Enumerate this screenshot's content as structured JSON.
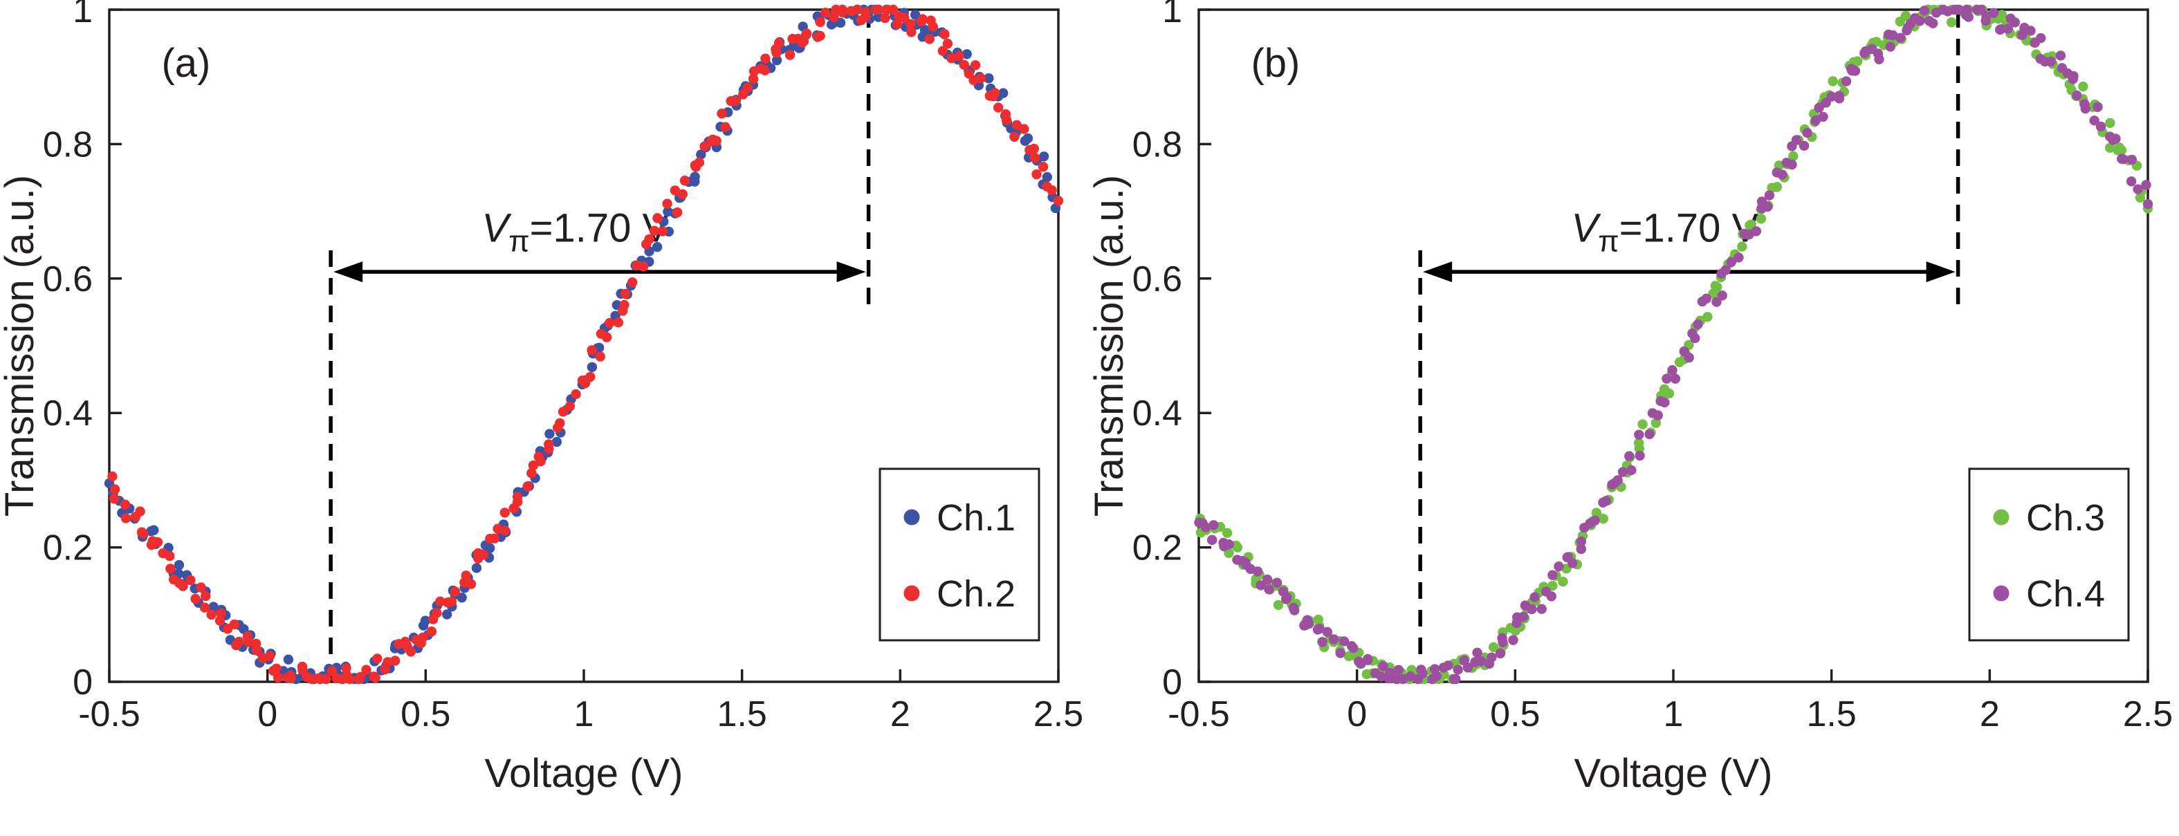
{
  "figure_background": "#ffffff",
  "axis_color": "#231f20",
  "chart_data": [
    {
      "type": "scatter",
      "panel_label": "(a)",
      "title": "",
      "xlabel": "Voltage (V)",
      "ylabel": "Transmission (a.u.)",
      "xlim": [
        -0.5,
        2.5
      ],
      "ylim": [
        0,
        1
      ],
      "x_ticks": [
        -0.5,
        0,
        0.5,
        1,
        1.5,
        2,
        2.5
      ],
      "x_tick_labels": [
        "-0.5",
        "0",
        "0.5",
        "1",
        "1.5",
        "2",
        "2.5"
      ],
      "y_ticks": [
        0,
        0.2,
        0.4,
        0.6,
        0.8,
        1
      ],
      "y_tick_labels": [
        "0",
        "0.2",
        "0.4",
        "0.6",
        "0.8",
        "1"
      ],
      "grid": false,
      "legend_position": "lower right",
      "annotation": {
        "v_label": "V",
        "pi_sub": "π",
        "value_text": "=1.70 V",
        "v_pi_volts": 1.7,
        "min_voltage": 0.2,
        "max_voltage": 1.9,
        "arrow_y": 0.61
      },
      "x": [
        -0.5,
        -0.4,
        -0.3,
        -0.2,
        -0.1,
        0,
        0.1,
        0.2,
        0.3,
        0.4,
        0.5,
        0.6,
        0.7,
        0.8,
        0.9,
        1,
        1.1,
        1.2,
        1.3,
        1.4,
        1.5,
        1.6,
        1.7,
        1.8,
        1.9,
        2,
        2.1,
        2.2,
        2.3,
        2.4,
        2.5
      ],
      "series": [
        {
          "name": "Ch.1",
          "color": "#3a53a4",
          "values": [
            0.29,
            0.235,
            0.175,
            0.12,
            0.07,
            0.032,
            0.008,
            0.003,
            0.01,
            0.035,
            0.075,
            0.13,
            0.2,
            0.28,
            0.36,
            0.45,
            0.55,
            0.64,
            0.72,
            0.8,
            0.87,
            0.925,
            0.965,
            0.99,
            1,
            0.99,
            0.965,
            0.925,
            0.87,
            0.8,
            0.72
          ]
        },
        {
          "name": "Ch.2",
          "color": "#ee2e2e",
          "values": [
            0.29,
            0.235,
            0.175,
            0.12,
            0.07,
            0.032,
            0.008,
            0.003,
            0.01,
            0.035,
            0.075,
            0.13,
            0.2,
            0.28,
            0.36,
            0.45,
            0.55,
            0.64,
            0.72,
            0.8,
            0.87,
            0.925,
            0.965,
            0.99,
            1,
            0.99,
            0.965,
            0.925,
            0.87,
            0.8,
            0.72
          ]
        }
      ]
    },
    {
      "type": "scatter",
      "panel_label": "(b)",
      "title": "",
      "xlabel": "Voltage (V)",
      "ylabel": "Transmission (a.u.)",
      "xlim": [
        -0.5,
        2.5
      ],
      "ylim": [
        0,
        1
      ],
      "x_ticks": [
        -0.5,
        0,
        0.5,
        1,
        1.5,
        2,
        2.5
      ],
      "x_tick_labels": [
        "-0.5",
        "0",
        "0.5",
        "1",
        "1.5",
        "2",
        "2.5"
      ],
      "y_ticks": [
        0,
        0.2,
        0.4,
        0.6,
        0.8,
        1
      ],
      "y_tick_labels": [
        "0",
        "0.2",
        "0.4",
        "0.6",
        "0.8",
        "1"
      ],
      "grid": false,
      "legend_position": "lower right",
      "annotation": {
        "v_label": "V",
        "pi_sub": "π",
        "value_text": "=1.70 V",
        "v_pi_volts": 1.7,
        "min_voltage": 0.2,
        "max_voltage": 1.9,
        "arrow_y": 0.61
      },
      "x": [
        -0.5,
        -0.4,
        -0.3,
        -0.2,
        -0.1,
        0,
        0.1,
        0.2,
        0.3,
        0.4,
        0.5,
        0.6,
        0.7,
        0.8,
        0.9,
        1,
        1.1,
        1.2,
        1.3,
        1.4,
        1.5,
        1.6,
        1.7,
        1.8,
        1.9,
        2,
        2.1,
        2.2,
        2.3,
        2.4,
        2.5
      ],
      "series": [
        {
          "name": "Ch.3",
          "color": "#72bf44",
          "values": [
            0.24,
            0.2,
            0.155,
            0.11,
            0.065,
            0.03,
            0.008,
            0.003,
            0.01,
            0.035,
            0.075,
            0.13,
            0.2,
            0.28,
            0.36,
            0.45,
            0.55,
            0.64,
            0.72,
            0.8,
            0.87,
            0.925,
            0.965,
            0.99,
            1,
            0.99,
            0.965,
            0.925,
            0.87,
            0.8,
            0.72
          ]
        },
        {
          "name": "Ch.4",
          "color": "#9d4fa0",
          "values": [
            0.24,
            0.2,
            0.155,
            0.11,
            0.065,
            0.03,
            0.008,
            0.003,
            0.01,
            0.035,
            0.075,
            0.13,
            0.2,
            0.28,
            0.36,
            0.45,
            0.55,
            0.64,
            0.72,
            0.8,
            0.87,
            0.925,
            0.965,
            0.99,
            1,
            0.99,
            0.965,
            0.925,
            0.87,
            0.8,
            0.72
          ]
        }
      ]
    }
  ]
}
